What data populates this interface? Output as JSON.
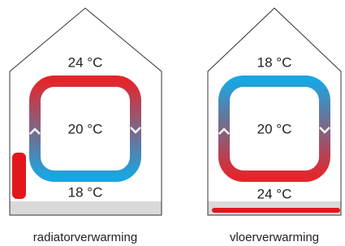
{
  "houses": [
    {
      "label": "radiatorverwarming",
      "top": "24 °C",
      "middle": "20 °C",
      "bottom": "18 °C"
    },
    {
      "label": "vloerverwarming",
      "top": "18 °C",
      "middle": "20 °C",
      "bottom": "24 °C"
    }
  ]
}
